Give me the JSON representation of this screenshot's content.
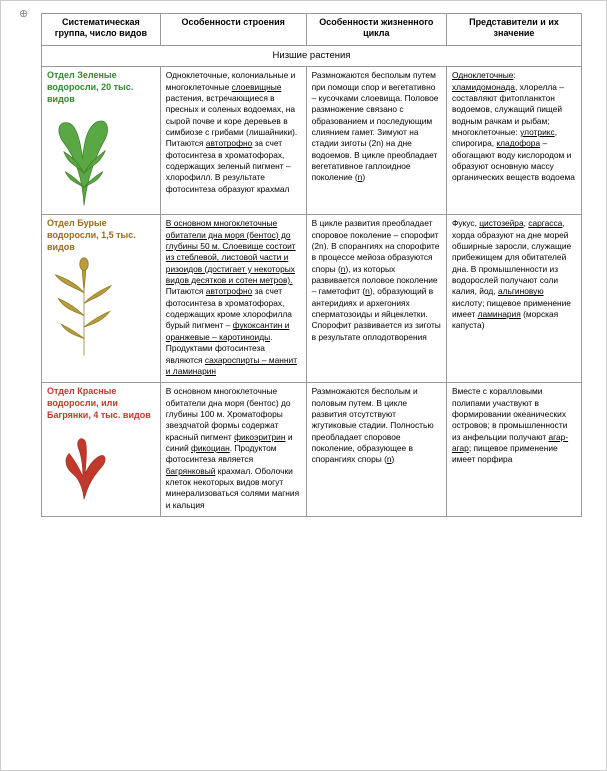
{
  "anchor_symbol": "⊕",
  "headers": {
    "c1": "Систематическая группа, число видов",
    "c2": "Особенности строения",
    "c3": "Особенности жизненного цикла",
    "c4": "Представители и их значение"
  },
  "section_title": "Низшие растения",
  "rows": [
    {
      "title": "Отдел Зеленые водоросли, 20 тыс. видов",
      "title_color": "green",
      "illus_svg": "green_alga",
      "structure": "Одноклеточные, колониальные и многоклеточные <span class=\"ul\">слоевищные</span> растения, встречающиеся в пресных и соленых водоемах, на сырой почве и коре деревьев в симбиозе с грибами (лишайники). Питаются <span class=\"ul\">автотрофно</span> за счет фотосинтеза в хроматофорах, содержащих зеленый пигмент – хлорофилл. В результате фотосинтеза образуют крахмал",
      "lifecycle": "Размножаются бесполым путем при помощи спор и вегетативно – кусочками слоевища. Половое размножение связано с образованием и последующим слиянием гамет. Зимуют на стадии зиготы (2n) на дне водоемов. В цикле преобладает вегетативное гаплоидное поколение (<span class=\"ul\">n</span>)",
      "reps": "<span class=\"ul\">Одноклеточные</span>: <span class=\"ul\">хламидомонада</span>, хлорелла – составляют фитопланктон водоемов, служащий пищей водным рачкам и рыбам; многоклеточные: <span class=\"ul\">улотрикс</span>, спирогира, <span class=\"ul\">кладофора</span> – обогащают воду кислородом и образуют основную массу органических веществ водоема"
    },
    {
      "title": "Отдел Бурые водоросли, 1,5 тыс. видов",
      "title_color": "brown",
      "illus_svg": "brown_alga",
      "structure": "<span class=\"ul\">В основном многоклеточные обитатели дна моря (бентос) до глубины 50 м. Слоевище состоит из стеблевой, листовой части и ризоидов (достигает у некоторых видов десятков и сотен метров).</span> Питаются <span class=\"ul\">автотрофно</span> за счет фотосинтеза в хроматофорах, содержащих кроме хлорофилла бурый пигмент – <span class=\"ul\">фукоксантин и оранжевые – каротиноиды</span>. Продуктами фотосинтеза являются <span class=\"ul\">сахароспирты – маннит и ламинарин</span>",
      "lifecycle": "В цикле развития преобладает споровое поколение – спорофит (2n). В спорангиях на спорофите в процессе мейоза образуются споры (<span class=\"ul\">n</span>), из которых развивается половое поколение – гаметофит (<span class=\"ul\">n</span>), образующий в антеридиях и архегониях сперматозоиды и яйцеклетки. Спорофит развивается из зиготы в результате оплодотворения",
      "reps": "Фукус, <span class=\"ul\">цистозейра</span>, <span class=\"ul\">саргасса</span>, хорда образуют на дне морей обширные заросли, служащие прибежищем для обитателей дна. В промышленности из водорослей получают соли калия, йод, <span class=\"ul\">альгиновую</span> кислоту; пищевое применение имеет <span class=\"ul\">ламинария</span> (морская капуста)"
    },
    {
      "title": "Отдел Красные водоросли, или Багрянки, 4 тыс. видов",
      "title_color": "red",
      "illus_svg": "red_alga",
      "structure": "В основном многоклеточные обитатели дна моря (бентос) до глубины 100 м. Хроматофоры звездчатой формы содержат красный пигмент <span class=\"ul\">фикоэритрин</span> и синий <span class=\"ul\">фикоциан</span>. Продуктом фотосинтеза является <span class=\"ul\">багрянковый</span> крахмал. Оболочки клеток некоторых видов могут минерализоваться солями магния и кальция",
      "lifecycle": "Размножаются бесполым и половым путем. В цикле развития отсутствуют жгутиковые стадии. Полностью преобладает споровое поколение, образующее в спорангиях споры (<span class=\"ul\">n</span>)",
      "reps": "Вместе с коралловыми полипами участвуют в формировании океанических островов; в промышленности из анфельции получают <span class=\"ul\">агар-агар</span>; пищевое применение имеет порфира"
    }
  ]
}
